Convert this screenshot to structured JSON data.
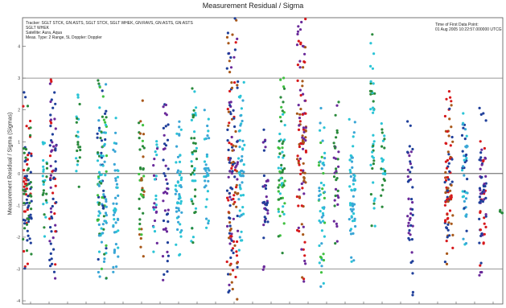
{
  "chart_data": {
    "type": "scatter",
    "title": "Measurement Residual / Sigma",
    "ylabel": "Measurement Residual / Sigma (Sigmas)",
    "xlabel": "",
    "ylim": [
      -4.1,
      4.9
    ],
    "y_ticks": [
      4,
      3,
      2,
      1,
      0,
      -1,
      -2,
      -3,
      -4
    ],
    "reference_lines": [
      3,
      0,
      -3
    ],
    "grid": false,
    "legend": "none",
    "info_left": [
      "Tracker: SGLT STCK, GN:ASTS, SGLT STCK, SGLT WHEK, GN:RAVS, GN:ASTS, GN:ASTS",
      "SGLT WHEK",
      "Satellite: Aura, Aqua",
      "Meas. Type: 2 Range, 5L Doppler: Doppler"
    ],
    "info_right": [
      "Time of First Data Point:",
      "01 Aug 2005 10:22:57.000000 UTCG"
    ],
    "colors": [
      "#d7191c",
      "#1f3f9a",
      "#2a8a3c",
      "#2bc4d6",
      "#6a2a9a",
      "#3aa6d6",
      "#40c040",
      "#a8581a"
    ],
    "series": [
      {
        "x": 34,
        "y": [
          -3.0,
          2.6
        ],
        "colors": [
          0,
          1,
          2
        ],
        "density": 2.2
      },
      {
        "x": 56,
        "y": [
          -2.0,
          1.2
        ],
        "colors": [
          2,
          3
        ],
        "density": 0.6
      },
      {
        "x": 66,
        "y": [
          -3.4,
          3.1
        ],
        "colors": [
          1,
          0,
          4
        ],
        "density": 1.6
      },
      {
        "x": 97,
        "y": [
          -0.6,
          2.6
        ],
        "colors": [
          2,
          3
        ],
        "density": 0.5
      },
      {
        "x": 127,
        "y": [
          -3.3,
          3.1
        ],
        "colors": [
          1,
          2,
          3,
          5,
          6
        ],
        "density": 2.6
      },
      {
        "x": 144,
        "y": [
          -3.4,
          1.8
        ],
        "colors": [
          3,
          5
        ],
        "density": 1.0
      },
      {
        "x": 176,
        "y": [
          -3.0,
          2.4
        ],
        "colors": [
          2,
          6,
          7
        ],
        "density": 1.0
      },
      {
        "x": 193,
        "y": [
          -2.5,
          1.5
        ],
        "colors": [
          4,
          3
        ],
        "density": 0.6
      },
      {
        "x": 206,
        "y": [
          -3.6,
          2.2
        ],
        "colors": [
          4,
          1
        ],
        "density": 1.0
      },
      {
        "x": 222,
        "y": [
          -2.8,
          1.7
        ],
        "colors": [
          5,
          3
        ],
        "density": 1.2
      },
      {
        "x": 241,
        "y": [
          -2.2,
          3.0
        ],
        "colors": [
          3,
          2
        ],
        "density": 1.0
      },
      {
        "x": 257,
        "y": [
          -2.0,
          2.1
        ],
        "colors": [
          5,
          3
        ],
        "density": 0.8
      },
      {
        "x": 289,
        "y": [
          -4.0,
          4.9
        ],
        "colors": [
          0,
          1,
          4,
          7
        ],
        "density": 3.2
      },
      {
        "x": 300,
        "y": [
          -2.6,
          3.0
        ],
        "colors": [
          3,
          5
        ],
        "density": 1.2
      },
      {
        "x": 330,
        "y": [
          -3.2,
          1.6
        ],
        "colors": [
          1,
          4
        ],
        "density": 0.9
      },
      {
        "x": 350,
        "y": [
          -2.5,
          3.2
        ],
        "colors": [
          2,
          6,
          3
        ],
        "density": 1.5
      },
      {
        "x": 375,
        "y": [
          -3.4,
          4.9
        ],
        "colors": [
          0,
          4,
          7
        ],
        "density": 2.4
      },
      {
        "x": 400,
        "y": [
          -3.8,
          2.4
        ],
        "colors": [
          3,
          5,
          6
        ],
        "density": 1.2
      },
      {
        "x": 418,
        "y": [
          -2.2,
          2.7
        ],
        "colors": [
          2,
          4
        ],
        "density": 0.8
      },
      {
        "x": 438,
        "y": [
          -2.9,
          1.9
        ],
        "colors": [
          3,
          5
        ],
        "density": 1.2
      },
      {
        "x": 463,
        "y": [
          -1.8,
          4.9
        ],
        "colors": [
          2,
          3
        ],
        "density": 0.9
      },
      {
        "x": 476,
        "y": [
          -1.5,
          1.9
        ],
        "colors": [
          3,
          2
        ],
        "density": 0.5
      },
      {
        "x": 510,
        "y": [
          -4.0,
          2.2
        ],
        "colors": [
          1,
          4
        ],
        "density": 1.0
      },
      {
        "x": 558,
        "y": [
          -3.0,
          2.8
        ],
        "colors": [
          7,
          0,
          1
        ],
        "density": 2.0
      },
      {
        "x": 578,
        "y": [
          -2.3,
          2.3
        ],
        "colors": [
          5,
          3,
          1
        ],
        "density": 1.0
      },
      {
        "x": 600,
        "y": [
          -3.2,
          2.4
        ],
        "colors": [
          4,
          0,
          1
        ],
        "density": 1.6
      },
      {
        "x": 623,
        "y": [
          -1.3,
          -1.1
        ],
        "colors": [
          2
        ],
        "density": 0.1
      }
    ]
  }
}
